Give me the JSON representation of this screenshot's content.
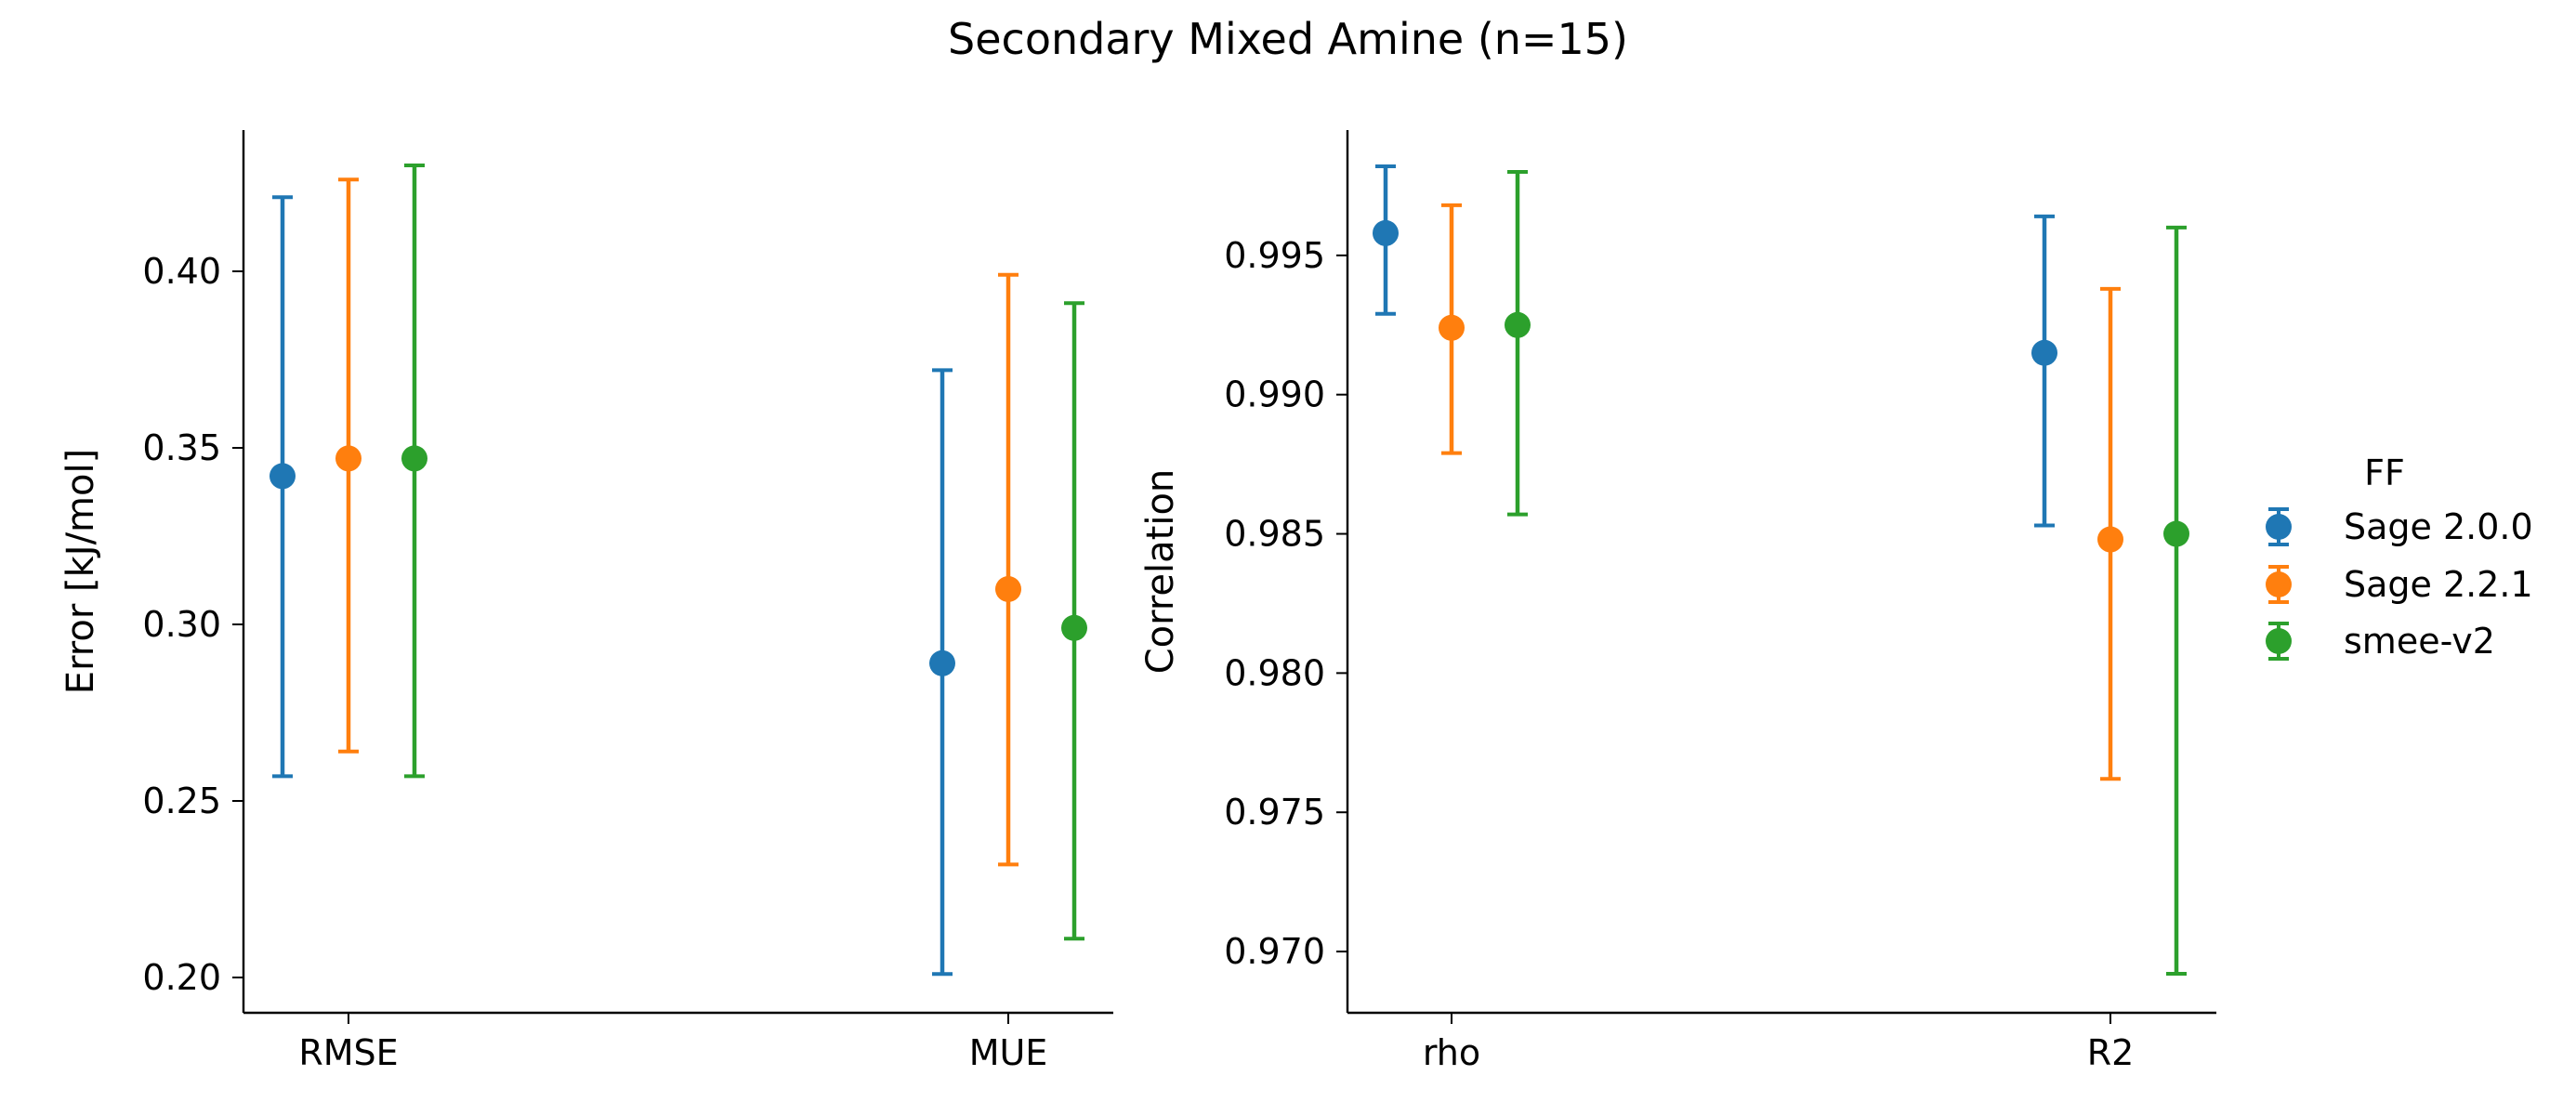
{
  "figure": {
    "title": "Secondary Mixed Amine (n=15)"
  },
  "legend": {
    "title": "FF",
    "entries": [
      {
        "name": "Sage 2.0.0",
        "color": "#1f77b4"
      },
      {
        "name": "Sage 2.2.1",
        "color": "#ff7f0e"
      },
      {
        "name": "smee-v2",
        "color": "#2ca02c"
      }
    ]
  },
  "chart_data": [
    {
      "type": "scatter",
      "subtype": "point-with-errorbars",
      "title": "",
      "xlabel": "",
      "ylabel": "Error [kJ/mol]",
      "categories": [
        "RMSE",
        "MUE"
      ],
      "ylim": [
        0.19,
        0.44
      ],
      "yticks": [
        0.2,
        0.25,
        0.3,
        0.35,
        0.4
      ],
      "ytick_labels": [
        "0.20",
        "0.25",
        "0.30",
        "0.35",
        "0.40"
      ],
      "grid": false,
      "series": [
        {
          "name": "Sage 2.0.0",
          "color": "#1f77b4",
          "values": [
            0.342,
            0.289
          ],
          "lower": [
            0.257,
            0.201
          ],
          "upper": [
            0.421,
            0.372
          ]
        },
        {
          "name": "Sage 2.2.1",
          "color": "#ff7f0e",
          "values": [
            0.347,
            0.31
          ],
          "lower": [
            0.264,
            0.232
          ],
          "upper": [
            0.426,
            0.399
          ]
        },
        {
          "name": "smee-v2",
          "color": "#2ca02c",
          "values": [
            0.347,
            0.299
          ],
          "lower": [
            0.257,
            0.211
          ],
          "upper": [
            0.43,
            0.391
          ]
        }
      ]
    },
    {
      "type": "scatter",
      "subtype": "point-with-errorbars",
      "title": "",
      "xlabel": "",
      "ylabel": "Correlation",
      "categories": [
        "rho",
        "R2"
      ],
      "ylim": [
        0.9678,
        0.9995
      ],
      "yticks": [
        0.97,
        0.975,
        0.98,
        0.985,
        0.99,
        0.995
      ],
      "ytick_labels": [
        "0.970",
        "0.975",
        "0.980",
        "0.985",
        "0.990",
        "0.995"
      ],
      "grid": false,
      "series": [
        {
          "name": "Sage 2.0.0",
          "color": "#1f77b4",
          "values": [
            0.9958,
            0.9915
          ],
          "lower": [
            0.9929,
            0.9853
          ],
          "upper": [
            0.9982,
            0.9964
          ]
        },
        {
          "name": "Sage 2.2.1",
          "color": "#ff7f0e",
          "values": [
            0.9924,
            0.9848
          ],
          "lower": [
            0.9879,
            0.9762
          ],
          "upper": [
            0.9968,
            0.9938
          ]
        },
        {
          "name": "smee-v2",
          "color": "#2ca02c",
          "values": [
            0.9925,
            0.985
          ],
          "lower": [
            0.9857,
            0.9692
          ],
          "upper": [
            0.998,
            0.996
          ]
        }
      ]
    }
  ]
}
